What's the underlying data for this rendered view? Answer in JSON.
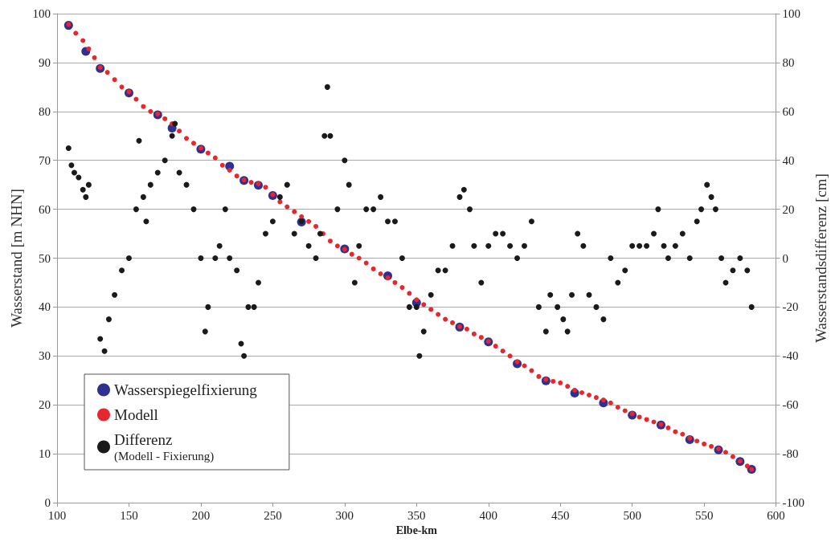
{
  "chart_data": {
    "type": "scatter",
    "xlabel": "Elbe-km",
    "ylabel": "Wasserstand [m NHN]",
    "y2label": "Wasserstandsdifferenz [cm]",
    "xlim": [
      100,
      600
    ],
    "xticks": [
      100,
      150,
      200,
      250,
      300,
      350,
      400,
      450,
      500,
      550,
      600
    ],
    "ylim": [
      0,
      100
    ],
    "yticks": [
      0,
      10,
      20,
      30,
      40,
      50,
      60,
      70,
      80,
      90,
      100
    ],
    "y2lim": [
      -100,
      100
    ],
    "y2ticks": [
      -100,
      -80,
      -60,
      -40,
      -20,
      0,
      20,
      40,
      60,
      80,
      100
    ],
    "grid": "y",
    "legend": "bottom left",
    "marker": "circle",
    "series": [
      {
        "name": "Wasserspiegelfixierung",
        "color": "#2e3192",
        "x": [
          108,
          120,
          130,
          150,
          170,
          180,
          200,
          220,
          230,
          240,
          250,
          270,
          300,
          330,
          350,
          380,
          400,
          420,
          440,
          460,
          480,
          500,
          520,
          540,
          560,
          575,
          583
        ],
        "values": [
          97.6,
          92.3,
          88.8,
          83.8,
          79.3,
          76.6,
          72.3,
          68.8,
          65.9,
          64.9,
          62.8,
          57.4,
          51.9,
          46.4,
          40.9,
          35.9,
          32.9,
          28.4,
          24.9,
          22.4,
          20.4,
          17.9,
          15.9,
          12.9,
          10.8,
          8.4,
          6.8
        ]
      },
      {
        "name": "Modell",
        "color": "#e8262b",
        "x": [
          108,
          113,
          118,
          122,
          126,
          130,
          135,
          140,
          145,
          150,
          155,
          160,
          165,
          170,
          175,
          180,
          185,
          190,
          195,
          200,
          205,
          210,
          215,
          220,
          225,
          230,
          235,
          240,
          245,
          250,
          255,
          260,
          265,
          270,
          275,
          280,
          285,
          290,
          295,
          300,
          305,
          310,
          315,
          320,
          325,
          330,
          335,
          340,
          345,
          350,
          355,
          360,
          365,
          370,
          375,
          380,
          385,
          390,
          395,
          400,
          405,
          410,
          415,
          420,
          425,
          430,
          435,
          440,
          445,
          450,
          455,
          460,
          465,
          470,
          475,
          480,
          485,
          490,
          495,
          500,
          505,
          510,
          515,
          520,
          525,
          530,
          535,
          540,
          545,
          550,
          555,
          560,
          565,
          570,
          575,
          580,
          583
        ],
        "values": [
          97.8,
          96,
          94.5,
          92.8,
          91,
          89,
          88,
          86.5,
          85,
          84,
          82.5,
          81,
          80,
          79.5,
          78.5,
          77.5,
          76,
          74.5,
          73.5,
          72.5,
          71.5,
          70.5,
          69,
          68,
          66.8,
          66,
          65.5,
          65.2,
          64.5,
          63,
          61.5,
          60.5,
          59.5,
          58.5,
          57.5,
          56.5,
          55,
          53.5,
          52.5,
          51.8,
          50.8,
          50,
          49,
          47.8,
          46.8,
          46,
          45,
          44,
          42.8,
          41.5,
          40.5,
          39.5,
          38.5,
          37.5,
          36.8,
          36,
          35.5,
          34.5,
          33.8,
          33,
          32,
          31,
          30,
          28.8,
          28,
          27,
          25.8,
          25.2,
          24.8,
          24.5,
          23.8,
          23,
          22.5,
          22,
          21.5,
          21,
          20.4,
          19.5,
          18.8,
          18.2,
          17.5,
          17,
          16.5,
          16,
          15.3,
          14.5,
          14,
          13.2,
          12.6,
          12,
          11.5,
          11,
          10.3,
          9.4,
          8.5,
          7.5,
          6.8
        ]
      },
      {
        "name": "Differenz\n(Modell - Fixierung)",
        "color": "#1a1a1a",
        "axis": "y2",
        "x": [
          108,
          110,
          112,
          115,
          118,
          120,
          122,
          130,
          133,
          136,
          140,
          145,
          150,
          155,
          157,
          160,
          162,
          165,
          170,
          175,
          180,
          182,
          185,
          190,
          195,
          200,
          203,
          205,
          210,
          213,
          217,
          220,
          225,
          228,
          230,
          233,
          237,
          240,
          245,
          250,
          255,
          260,
          265,
          270,
          275,
          280,
          283,
          286,
          288,
          290,
          295,
          300,
          303,
          307,
          310,
          315,
          320,
          325,
          330,
          335,
          340,
          345,
          350,
          352,
          355,
          360,
          365,
          370,
          375,
          380,
          383,
          387,
          390,
          395,
          400,
          405,
          410,
          415,
          420,
          425,
          430,
          435,
          440,
          443,
          448,
          452,
          455,
          458,
          462,
          466,
          470,
          475,
          480,
          485,
          490,
          495,
          500,
          505,
          510,
          515,
          518,
          522,
          525,
          530,
          535,
          540,
          545,
          548,
          552,
          555,
          558,
          562,
          565,
          570,
          575,
          580,
          583
        ],
        "values": [
          45,
          38,
          35,
          33,
          28,
          25,
          30,
          -33,
          -38,
          -25,
          -15,
          -5,
          0,
          20,
          48,
          25,
          15,
          30,
          35,
          40,
          50,
          55,
          35,
          30,
          20,
          0,
          -30,
          -20,
          0,
          5,
          20,
          0,
          -5,
          -35,
          -40,
          -20,
          -20,
          -10,
          10,
          15,
          25,
          30,
          10,
          15,
          5,
          0,
          10,
          50,
          70,
          50,
          20,
          40,
          30,
          -10,
          5,
          20,
          20,
          25,
          15,
          15,
          0,
          -20,
          -20,
          -40,
          -30,
          -15,
          -5,
          -5,
          5,
          25,
          28,
          20,
          5,
          -10,
          5,
          10,
          10,
          5,
          0,
          5,
          15,
          -20,
          -30,
          -15,
          -20,
          -25,
          -30,
          -15,
          10,
          5,
          -15,
          -20,
          -25,
          0,
          -10,
          -5,
          5,
          5,
          5,
          10,
          20,
          5,
          0,
          5,
          10,
          0,
          15,
          20,
          30,
          25,
          20,
          0,
          -10,
          -5,
          0,
          -5,
          -20
        ]
      }
    ]
  }
}
